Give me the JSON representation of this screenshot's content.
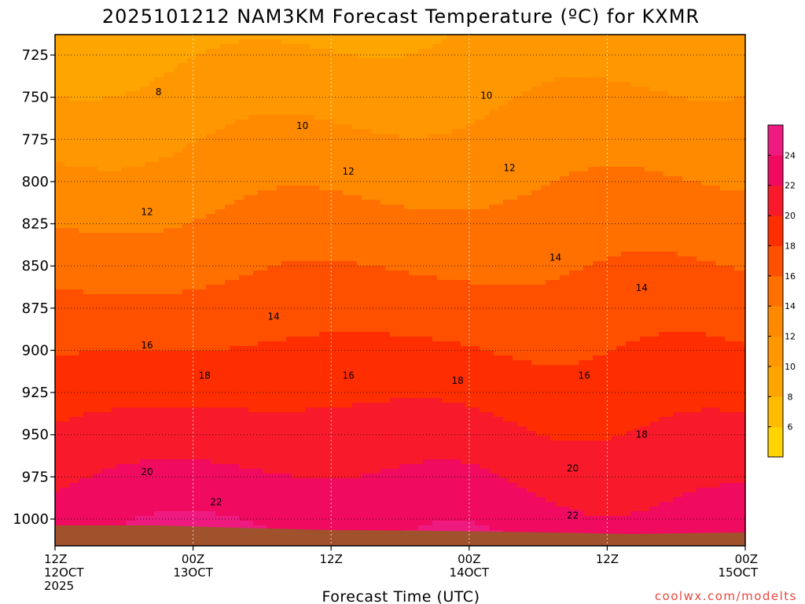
{
  "chart_data": {
    "type": "contour",
    "title": "2025101212 NAM3KM Forecast Temperature (ºC) for KXMR",
    "xlabel": "Forecast Time (UTC)",
    "ylabel": "",
    "y_axis": {
      "scale": "pressure (inverted)",
      "range": [
        1015,
        712
      ],
      "ticks": [
        725,
        750,
        775,
        800,
        825,
        850,
        875,
        900,
        925,
        950,
        975,
        1000
      ],
      "tick_labels": [
        "725",
        "750",
        "775",
        "800",
        "825",
        "850",
        "875",
        "900",
        "925",
        "950",
        "975",
        "1000"
      ]
    },
    "x_axis": {
      "range_hours": [
        0,
        60
      ],
      "ticks": [
        {
          "hour": 0,
          "line1": "12Z",
          "line2": "12OCT",
          "line3": "2025"
        },
        {
          "hour": 12,
          "line1": "00Z",
          "line2": "13OCT",
          "line3": ""
        },
        {
          "hour": 24,
          "line1": "12Z",
          "line2": "",
          "line3": ""
        },
        {
          "hour": 36,
          "line1": "00Z",
          "line2": "14OCT",
          "line3": ""
        },
        {
          "hour": 48,
          "line1": "12Z",
          "line2": "",
          "line3": ""
        },
        {
          "hour": 60,
          "line1": "00Z",
          "line2": "15OCT",
          "line3": ""
        }
      ]
    },
    "grid": true,
    "colorbar": {
      "position": "right",
      "levels": [
        4,
        6,
        8,
        10,
        12,
        14,
        16,
        18,
        20,
        22,
        24,
        26
      ],
      "tick_labels": [
        "6",
        "8",
        "10",
        "12",
        "14",
        "16",
        "18",
        "20",
        "22",
        "24"
      ],
      "colors": [
        "#FFD400",
        "#FFBB00",
        "#FFA500",
        "#FF9800",
        "#FF8A00",
        "#FF7000",
        "#FF5000",
        "#FF2E00",
        "#F81A2A",
        "#F00A60",
        "#EF1A80"
      ]
    },
    "contour_labels": [
      {
        "text": "8",
        "hour": 9.0,
        "p": 747
      },
      {
        "text": "10",
        "hour": 21.5,
        "p": 767
      },
      {
        "text": "10",
        "hour": 37.5,
        "p": 749
      },
      {
        "text": "12",
        "hour": 8.0,
        "p": 818
      },
      {
        "text": "12",
        "hour": 25.5,
        "p": 794
      },
      {
        "text": "12",
        "hour": 39.5,
        "p": 792
      },
      {
        "text": "14",
        "hour": 19.0,
        "p": 880
      },
      {
        "text": "14",
        "hour": 43.5,
        "p": 845
      },
      {
        "text": "14",
        "hour": 51.0,
        "p": 863
      },
      {
        "text": "16",
        "hour": 8.0,
        "p": 897
      },
      {
        "text": "16",
        "hour": 25.5,
        "p": 915
      },
      {
        "text": "16",
        "hour": 46.0,
        "p": 915
      },
      {
        "text": "18",
        "hour": 13.0,
        "p": 915
      },
      {
        "text": "18",
        "hour": 35.0,
        "p": 918
      },
      {
        "text": "18",
        "hour": 51.0,
        "p": 950
      },
      {
        "text": "20",
        "hour": 8.0,
        "p": 972
      },
      {
        "text": "20",
        "hour": 45.0,
        "p": 970
      },
      {
        "text": "22",
        "hour": 14.0,
        "p": 990
      },
      {
        "text": "22",
        "hour": 45.0,
        "p": 998
      }
    ],
    "surface_color": "#A0522D"
  },
  "credit": "coolwx.com/modelts"
}
